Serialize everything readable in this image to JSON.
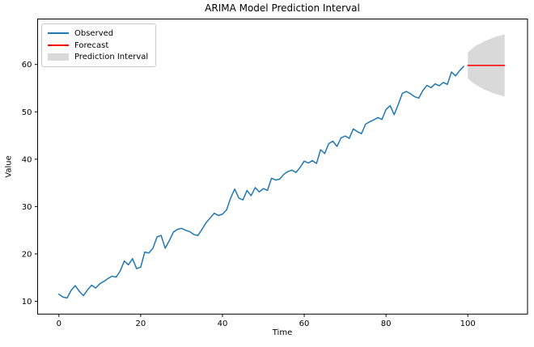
{
  "figure": {
    "title": "ARIMA Model Prediction Interval",
    "xlabel": "Time",
    "ylabel": "Value"
  },
  "colors": {
    "axis": "#000000",
    "observed": "#1f77b4",
    "forecast": "#ff0000",
    "interval_fill": "#d9d9d9",
    "background": "#ffffff"
  },
  "legend": {
    "items": [
      {
        "label": "Observed",
        "swatch": "line",
        "color": "#1f77b4"
      },
      {
        "label": "Forecast",
        "swatch": "line",
        "color": "#ff0000"
      },
      {
        "label": "Prediction Interval",
        "swatch": "patch",
        "color": "#d9d9d9"
      }
    ]
  },
  "chart_data": {
    "type": "line",
    "title": "ARIMA Model Prediction Interval",
    "xlabel": "Time",
    "ylabel": "Value",
    "xlim": [
      -5.2,
      114.6
    ],
    "ylim": [
      7.3,
      69.6
    ],
    "xticks": [
      0,
      20,
      40,
      60,
      80,
      100
    ],
    "yticks": [
      10,
      20,
      30,
      40,
      50,
      60
    ],
    "grid": false,
    "legend_position": "upper-left",
    "series": [
      {
        "name": "Observed",
        "type": "line",
        "color": "#1f77b4",
        "x_start": 0,
        "x_step": 1,
        "values": [
          11.5,
          10.9,
          10.7,
          12.3,
          13.3,
          12.1,
          11.2,
          12.4,
          13.4,
          12.8,
          13.7,
          14.2,
          14.8,
          15.3,
          15.1,
          16.4,
          18.5,
          17.7,
          19.0,
          16.9,
          17.2,
          20.4,
          20.2,
          21.2,
          23.6,
          23.9,
          21.2,
          22.8,
          24.6,
          25.2,
          25.4,
          25.0,
          24.7,
          24.1,
          23.9,
          25.2,
          26.6,
          27.6,
          28.6,
          28.1,
          28.4,
          29.3,
          31.8,
          33.7,
          31.8,
          31.4,
          33.4,
          32.3,
          34.0,
          33.1,
          33.8,
          33.4,
          36.0,
          35.6,
          35.8,
          36.8,
          37.4,
          37.7,
          37.2,
          38.3,
          39.6,
          39.2,
          39.7,
          39.1,
          42.0,
          41.2,
          43.3,
          43.8,
          42.7,
          44.5,
          44.9,
          44.4,
          46.4,
          45.8,
          45.4,
          47.4,
          47.9,
          48.3,
          48.8,
          48.4,
          50.5,
          51.3,
          49.4,
          51.6,
          53.9,
          54.3,
          53.8,
          53.2,
          52.9,
          54.5,
          55.6,
          55.1,
          55.9,
          55.5,
          56.2,
          55.8,
          58.4,
          57.6,
          58.7,
          59.6
        ]
      },
      {
        "name": "Forecast",
        "type": "line",
        "color": "#ff0000",
        "x_start": 100,
        "x_step": 1,
        "values": [
          59.8,
          59.8,
          59.8,
          59.8,
          59.8,
          59.8,
          59.8,
          59.8,
          59.8,
          59.8
        ]
      },
      {
        "name": "Prediction Interval",
        "type": "band",
        "fill": "#d9d9d9",
        "x_start": 100,
        "x_step": 1,
        "upper": [
          62.5,
          63.3,
          64.0,
          64.4,
          64.9,
          65.2,
          65.6,
          65.9,
          66.1,
          66.4
        ],
        "lower": [
          57.1,
          56.3,
          55.7,
          55.2,
          54.7,
          54.4,
          54.0,
          53.7,
          53.5,
          53.2
        ]
      }
    ]
  }
}
